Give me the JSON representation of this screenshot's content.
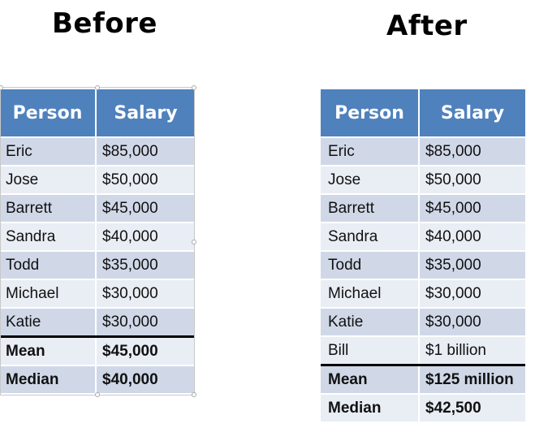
{
  "before": {
    "title": "Before",
    "headers": [
      "Person",
      "Salary"
    ],
    "rows": [
      [
        "Eric",
        "$85,000"
      ],
      [
        "Jose",
        "$50,000"
      ],
      [
        "Barrett",
        "$45,000"
      ],
      [
        "Sandra",
        "$40,000"
      ],
      [
        "Todd",
        "$35,000"
      ],
      [
        "Michael",
        "$30,000"
      ],
      [
        "Katie",
        "$30,000"
      ]
    ],
    "summary": [
      [
        "Mean",
        "$45,000"
      ],
      [
        "Median",
        "$40,000"
      ]
    ]
  },
  "after": {
    "title": "After",
    "headers": [
      "Person",
      "Salary"
    ],
    "rows": [
      [
        "Eric",
        "$85,000"
      ],
      [
        "Jose",
        "$50,000"
      ],
      [
        "Barrett",
        "$45,000"
      ],
      [
        "Sandra",
        "$40,000"
      ],
      [
        "Todd",
        "$35,000"
      ],
      [
        "Michael",
        "$30,000"
      ],
      [
        "Katie",
        "$30,000"
      ],
      [
        "Bill",
        "$1 billion"
      ]
    ],
    "summary": [
      [
        "Mean",
        "$125 million"
      ],
      [
        "Median",
        "$42,500"
      ]
    ]
  },
  "colors": {
    "header": "#4f81bd",
    "row_dark": "#d0d8e8",
    "row_light": "#e9edf4",
    "divider": "#000000"
  }
}
